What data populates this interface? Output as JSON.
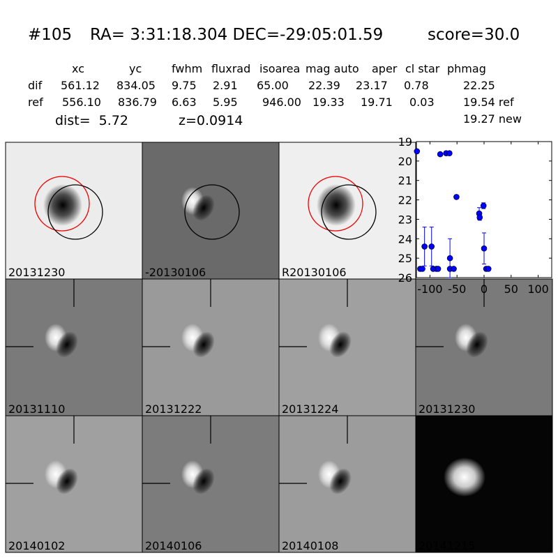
{
  "header": {
    "id": "#105",
    "coords": "RA= 3:31:18.304 DEC=-29:05:01.59",
    "score": "score=30.0"
  },
  "table": {
    "columns": [
      "xc",
      "yc",
      "fwhm",
      "fluxrad",
      "isoarea",
      "mag auto",
      "aper",
      "cl star",
      "phmag"
    ],
    "rows": [
      {
        "label": "dif",
        "cells": [
          "561.12",
          "834.05",
          "9.75",
          "2.91",
          "65.00",
          "22.39",
          "23.17",
          "0.78",
          "22.25"
        ]
      },
      {
        "label": "ref",
        "cells": [
          "556.10",
          "836.79",
          "6.63",
          "5.95",
          "946.00",
          "19.33",
          "19.71",
          "0.03",
          "19.54 ref"
        ]
      }
    ],
    "extra": "19.27 new"
  },
  "summary": {
    "dist": "dist=  5.72",
    "z": "z=0.0914"
  },
  "stamps": [
    {
      "label": "20131230"
    },
    {
      "label": "-20130106"
    },
    {
      "label": "R20130106"
    },
    {
      "label": "20131110"
    },
    {
      "label": "20131222"
    },
    {
      "label": "20131224"
    },
    {
      "label": "20131230",
      "label_color": "#ff0000"
    },
    {
      "label": "20140102"
    },
    {
      "label": "20140106"
    },
    {
      "label": "20140108"
    },
    {
      "label": "20141215"
    }
  ],
  "chart_data": {
    "type": "scatter",
    "color": "#0000ff",
    "x": [
      -124,
      -118,
      -114,
      -110,
      -97,
      -94,
      -88,
      -85,
      -81,
      -70,
      -64,
      -63,
      -63,
      -56,
      -51,
      -9,
      -8,
      -1,
      0,
      4,
      8
    ],
    "values": [
      19.5,
      25.55,
      25.55,
      24.4,
      24.4,
      25.55,
      25.55,
      25.55,
      19.65,
      19.6,
      19.6,
      25.0,
      25.55,
      25.55,
      21.85,
      22.7,
      22.9,
      22.3,
      24.5,
      25.55,
      25.55
    ],
    "errors": [
      null,
      0.1,
      null,
      1.0,
      1.0,
      null,
      null,
      null,
      null,
      null,
      null,
      1.0,
      null,
      null,
      0.1,
      0.3,
      0.15,
      0.15,
      0.8,
      0.1,
      0.1
    ],
    "xlim": [
      -125,
      125
    ],
    "ylim": [
      26,
      19
    ],
    "xticks": [
      -100,
      -50,
      0,
      50,
      100
    ],
    "yticks": [
      19,
      20,
      21,
      22,
      23,
      24,
      25,
      26
    ]
  }
}
